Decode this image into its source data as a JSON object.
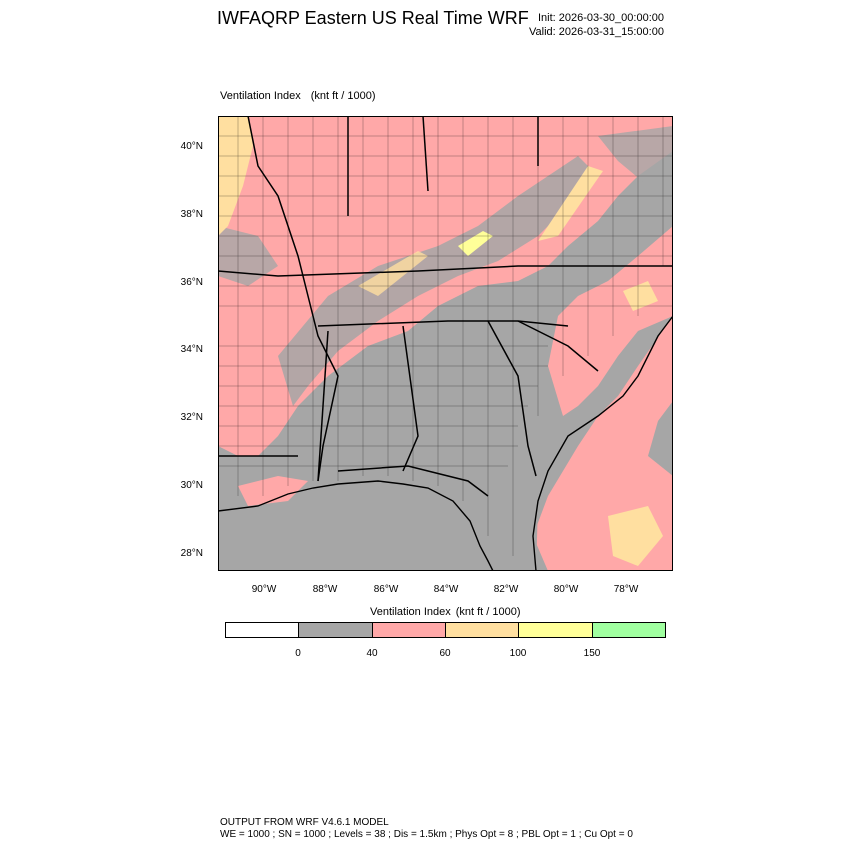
{
  "header": {
    "title": "IWFAQRP Eastern US Real Time WRF",
    "init": "Init: 2026-03-30_00:00:00",
    "valid": "Valid: 2026-03-31_15:00:00"
  },
  "map": {
    "field_label": "Ventilation Index",
    "units": "(knt ft / 1000)",
    "lat_labels": [
      "40°N",
      "38°N",
      "36°N",
      "34°N",
      "32°N",
      "30°N",
      "28°N"
    ],
    "lon_labels": [
      "90°W",
      "88°W",
      "86°W",
      "84°W",
      "82°W",
      "80°W",
      "78°W"
    ],
    "colors": {
      "water_gray": "#a6a6a6",
      "land_gray": "#a6a6a6",
      "pink": "#ffa8a8",
      "tan": "#ffdfa0",
      "yellow": "#ffff99",
      "green": "#a0ffa0"
    }
  },
  "legend": {
    "title": "Ventilation Index",
    "units": "(knt ft / 1000)",
    "colors": [
      "#ffffff",
      "#a6a6a6",
      "#ffa8a8",
      "#ffdfa0",
      "#ffff99",
      "#a0ffa0"
    ],
    "tick_labels": [
      "0",
      "40",
      "60",
      "100",
      "150"
    ]
  },
  "footer": {
    "line1": "OUTPUT FROM WRF V4.6.1 MODEL",
    "line2": "WE = 1000 ; SN = 1000 ; Levels = 38 ; Dis = 1.5km ; Phys Opt = 8 ; PBL Opt = 1 ; Cu Opt = 0"
  }
}
